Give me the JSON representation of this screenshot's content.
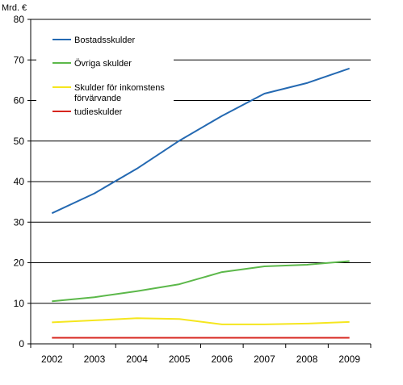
{
  "chart_data": {
    "type": "line",
    "unit_label": "Mrd. €",
    "x": [
      "2002",
      "2003",
      "2004",
      "2005",
      "2006",
      "2007",
      "2008",
      "2009"
    ],
    "ylim": [
      0,
      80
    ],
    "yticks": [
      0,
      10,
      20,
      30,
      40,
      50,
      60,
      70,
      80
    ],
    "grid": "horizontal",
    "legend_placement": "top-left",
    "series": [
      {
        "name": "Bostadsskulder",
        "color": "#2469b2",
        "values": [
          32.2,
          37.1,
          43.2,
          50.1,
          56.2,
          61.7,
          64.3,
          67.9
        ]
      },
      {
        "name": "Övriga skulder",
        "color": "#5cb84a",
        "values": [
          10.5,
          11.5,
          13.0,
          14.7,
          17.7,
          19.1,
          19.5,
          20.4
        ]
      },
      {
        "name_lines": [
          "Skulder för inkomstens",
          "förvärvande"
        ],
        "color": "#f5e61e",
        "values": [
          5.3,
          5.8,
          6.3,
          6.1,
          4.8,
          4.8,
          5.0,
          5.4
        ]
      },
      {
        "name": "tudieskulder",
        "color": "#d7261e",
        "values": [
          1.5,
          1.5,
          1.5,
          1.5,
          1.5,
          1.5,
          1.5,
          1.5
        ]
      }
    ]
  }
}
